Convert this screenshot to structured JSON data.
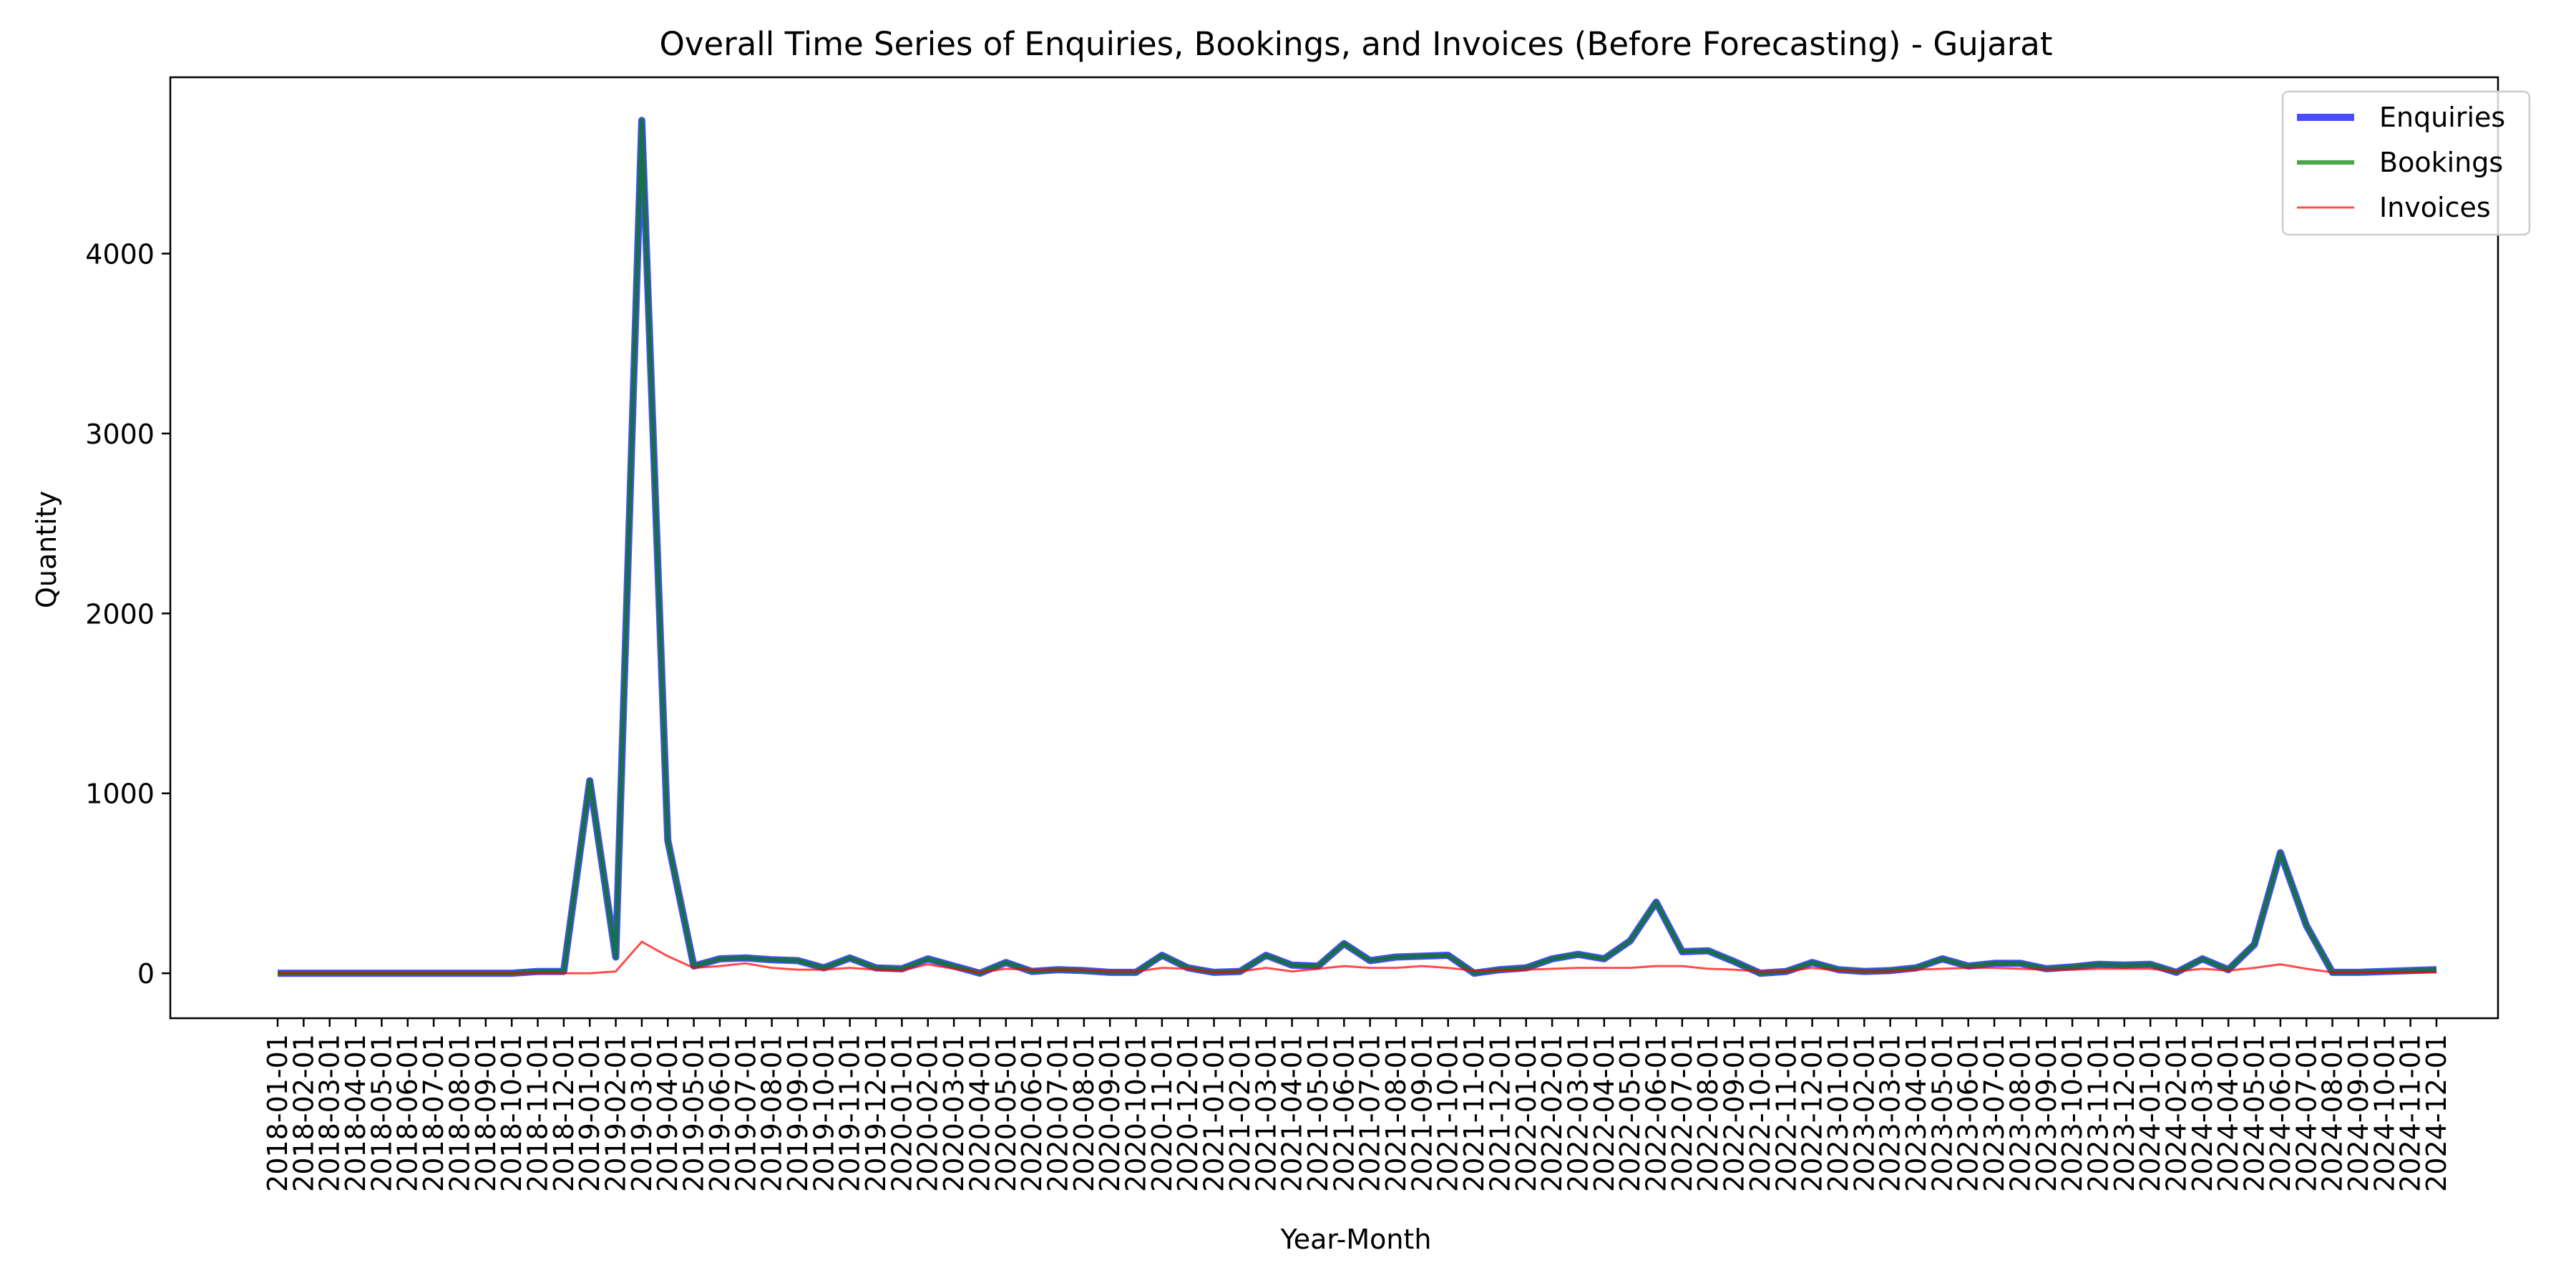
{
  "chart_data": {
    "type": "line",
    "title": "Overall Time Series of Enquiries, Bookings, and Invoices (Before Forecasting) - Gujarat",
    "xlabel": "Year-Month",
    "ylabel": "Quantity",
    "ylim": [
      -250,
      4980
    ],
    "yticks": [
      0,
      1000,
      2000,
      3000,
      4000
    ],
    "grid": false,
    "legend_position": "top-right",
    "x": [
      "2018-01-01",
      "2018-02-01",
      "2018-03-01",
      "2018-04-01",
      "2018-05-01",
      "2018-06-01",
      "2018-07-01",
      "2018-08-01",
      "2018-09-01",
      "2018-10-01",
      "2018-11-01",
      "2018-12-01",
      "2019-01-01",
      "2019-02-01",
      "2019-03-01",
      "2019-04-01",
      "2019-05-01",
      "2019-06-01",
      "2019-07-01",
      "2019-08-01",
      "2019-09-01",
      "2019-10-01",
      "2019-11-01",
      "2019-12-01",
      "2020-01-01",
      "2020-02-01",
      "2020-03-01",
      "2020-04-01",
      "2020-05-01",
      "2020-06-01",
      "2020-07-01",
      "2020-08-01",
      "2020-09-01",
      "2020-10-01",
      "2020-11-01",
      "2020-12-01",
      "2021-01-01",
      "2021-02-01",
      "2021-03-01",
      "2021-04-01",
      "2021-05-01",
      "2021-06-01",
      "2021-07-01",
      "2021-08-01",
      "2021-09-01",
      "2021-10-01",
      "2021-11-01",
      "2021-12-01",
      "2022-01-01",
      "2022-02-01",
      "2022-03-01",
      "2022-04-01",
      "2022-05-01",
      "2022-06-01",
      "2022-07-01",
      "2022-08-01",
      "2022-09-01",
      "2022-10-01",
      "2022-11-01",
      "2022-12-01",
      "2023-01-01",
      "2023-02-01",
      "2023-03-01",
      "2023-04-01",
      "2023-05-01",
      "2023-06-01",
      "2023-07-01",
      "2023-08-01",
      "2023-09-01",
      "2023-10-01",
      "2023-11-01",
      "2023-12-01",
      "2024-01-01",
      "2024-02-01",
      "2024-03-01",
      "2024-04-01",
      "2024-05-01",
      "2024-06-01",
      "2024-07-01",
      "2024-08-01",
      "2024-09-01",
      "2024-10-01",
      "2024-11-01",
      "2024-12-01"
    ],
    "series": [
      {
        "name": "Enquiries",
        "color": "#0000ff",
        "opacity": 0.7,
        "line_width": 4,
        "values": [
          0,
          0,
          0,
          0,
          0,
          0,
          0,
          0,
          0,
          0,
          10,
          10,
          1070,
          90,
          4740,
          740,
          40,
          80,
          85,
          75,
          70,
          30,
          85,
          30,
          25,
          80,
          40,
          0,
          60,
          10,
          20,
          15,
          5,
          5,
          100,
          30,
          5,
          10,
          100,
          45,
          40,
          165,
          70,
          90,
          95,
          100,
          0,
          20,
          30,
          80,
          105,
          80,
          180,
          395,
          120,
          125,
          65,
          0,
          10,
          60,
          20,
          10,
          15,
          30,
          80,
          40,
          55,
          55,
          25,
          35,
          50,
          45,
          50,
          5,
          80,
          20,
          160,
          670,
          265,
          5,
          5,
          10,
          15,
          20
        ]
      },
      {
        "name": "Bookings",
        "color": "#008000",
        "opacity": 0.7,
        "line_width": 2.5,
        "values": [
          0,
          0,
          0,
          0,
          0,
          0,
          0,
          0,
          0,
          0,
          10,
          10,
          1070,
          90,
          4740,
          740,
          40,
          80,
          85,
          75,
          70,
          30,
          85,
          30,
          25,
          80,
          40,
          0,
          60,
          10,
          20,
          15,
          5,
          5,
          100,
          30,
          5,
          10,
          100,
          45,
          40,
          165,
          70,
          90,
          95,
          100,
          0,
          20,
          30,
          80,
          105,
          80,
          180,
          395,
          120,
          125,
          65,
          0,
          10,
          60,
          20,
          10,
          15,
          30,
          80,
          40,
          55,
          55,
          25,
          35,
          50,
          45,
          50,
          5,
          80,
          20,
          160,
          670,
          265,
          5,
          5,
          10,
          15,
          20
        ]
      },
      {
        "name": "Invoices",
        "color": "#ff0000",
        "opacity": 0.7,
        "line_width": 1.2,
        "values": [
          0,
          0,
          0,
          0,
          0,
          0,
          0,
          0,
          0,
          0,
          0,
          0,
          0,
          10,
          175,
          95,
          30,
          40,
          55,
          30,
          20,
          20,
          30,
          20,
          15,
          50,
          25,
          5,
          25,
          20,
          20,
          20,
          10,
          10,
          30,
          25,
          5,
          10,
          30,
          10,
          25,
          40,
          30,
          30,
          40,
          30,
          15,
          15,
          20,
          25,
          30,
          30,
          30,
          40,
          40,
          25,
          20,
          10,
          10,
          30,
          15,
          10,
          10,
          20,
          25,
          30,
          30,
          25,
          20,
          20,
          25,
          25,
          25,
          10,
          25,
          15,
          30,
          50,
          25,
          5,
          5,
          5,
          5,
          5
        ]
      }
    ]
  }
}
